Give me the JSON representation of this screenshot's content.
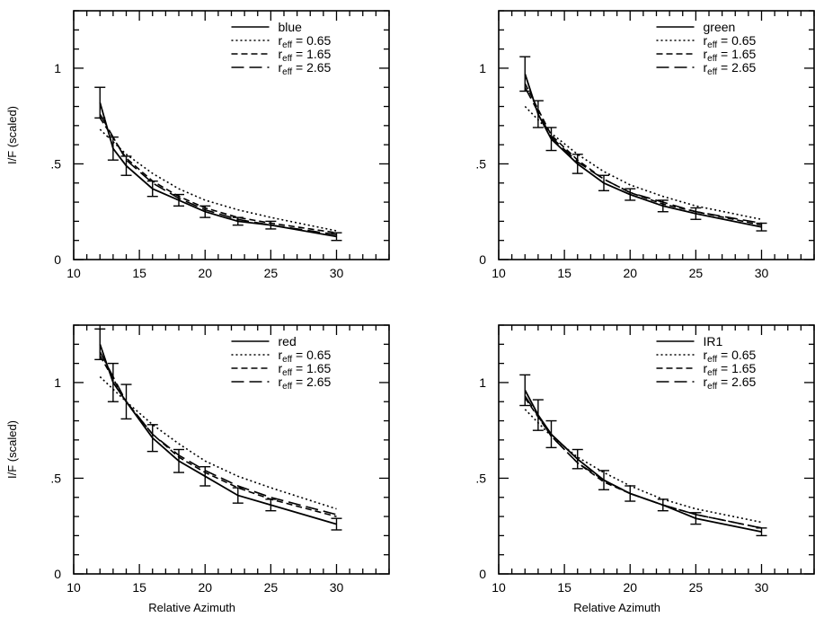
{
  "figure": {
    "ylabel": "I/F (scaled)",
    "xlabel": "Relative Azimuth"
  },
  "chart_data": [
    {
      "type": "line",
      "panel": "top-left",
      "xlim": [
        10,
        34
      ],
      "ylim": [
        0,
        1.3
      ],
      "xticks": [
        "10",
        "15",
        "20",
        "25",
        "30"
      ],
      "yticks": [
        {
          "v": 0,
          "label": "0"
        },
        {
          "v": 0.5,
          "label": ".5"
        },
        {
          "v": 1,
          "label": "1"
        }
      ],
      "ylabel": "I/F (scaled)",
      "xlabel": "",
      "legend_position": "top-right",
      "observed": {
        "name": "blue",
        "x": [
          12,
          13,
          14,
          16,
          18,
          20,
          22.5,
          25,
          30
        ],
        "y": [
          0.82,
          0.58,
          0.49,
          0.37,
          0.31,
          0.25,
          0.2,
          0.18,
          0.12
        ],
        "err": [
          0.08,
          0.06,
          0.05,
          0.04,
          0.03,
          0.03,
          0.02,
          0.02,
          0.02
        ]
      },
      "series": [
        {
          "name_pre": "r",
          "name_sub": "eff",
          "name_post": " = 0.65",
          "dash": "dotted",
          "x": [
            12,
            14,
            16,
            18,
            20,
            22.5,
            25,
            30
          ],
          "y": [
            0.68,
            0.55,
            0.45,
            0.37,
            0.31,
            0.26,
            0.22,
            0.15
          ]
        },
        {
          "name_pre": "r",
          "name_sub": "eff",
          "name_post": " = 1.65",
          "dash": "short-dash",
          "x": [
            12,
            14,
            16,
            18,
            20,
            22.5,
            25,
            30
          ],
          "y": [
            0.74,
            0.53,
            0.41,
            0.33,
            0.27,
            0.22,
            0.19,
            0.14
          ]
        },
        {
          "name_pre": "r",
          "name_sub": "eff",
          "name_post": " = 2.65",
          "dash": "long-dash",
          "x": [
            12,
            14,
            16,
            18,
            20,
            22.5,
            25,
            30
          ],
          "y": [
            0.76,
            0.52,
            0.4,
            0.32,
            0.26,
            0.21,
            0.18,
            0.13
          ]
        }
      ]
    },
    {
      "type": "line",
      "panel": "top-right",
      "xlim": [
        10,
        34
      ],
      "ylim": [
        0,
        1.3
      ],
      "xticks": [
        "10",
        "15",
        "20",
        "25",
        "30"
      ],
      "yticks": [
        {
          "v": 0,
          "label": "0"
        },
        {
          "v": 0.5,
          "label": ".5"
        },
        {
          "v": 1,
          "label": "1"
        }
      ],
      "ylabel": "",
      "xlabel": "",
      "legend_position": "top-right",
      "observed": {
        "name": "green",
        "x": [
          12,
          13,
          14,
          16,
          18,
          20,
          22.5,
          25,
          30
        ],
        "y": [
          0.97,
          0.76,
          0.63,
          0.5,
          0.4,
          0.34,
          0.28,
          0.24,
          0.17
        ],
        "err": [
          0.09,
          0.07,
          0.06,
          0.05,
          0.04,
          0.03,
          0.03,
          0.03,
          0.02
        ]
      },
      "series": [
        {
          "name_pre": "r",
          "name_sub": "eff",
          "name_post": " = 0.65",
          "dash": "dotted",
          "x": [
            12,
            14,
            16,
            18,
            20,
            22.5,
            25,
            30
          ],
          "y": [
            0.8,
            0.66,
            0.55,
            0.46,
            0.39,
            0.33,
            0.28,
            0.21
          ]
        },
        {
          "name_pre": "r",
          "name_sub": "eff",
          "name_post": " = 1.65",
          "dash": "short-dash",
          "x": [
            12,
            14,
            16,
            18,
            20,
            22.5,
            25,
            30
          ],
          "y": [
            0.92,
            0.65,
            0.52,
            0.42,
            0.35,
            0.29,
            0.25,
            0.18
          ]
        },
        {
          "name_pre": "r",
          "name_sub": "eff",
          "name_post": " = 2.65",
          "dash": "long-dash",
          "x": [
            12,
            14,
            16,
            18,
            20,
            22.5,
            25,
            30
          ],
          "y": [
            0.9,
            0.64,
            0.51,
            0.42,
            0.35,
            0.3,
            0.25,
            0.19
          ]
        }
      ]
    },
    {
      "type": "line",
      "panel": "bottom-left",
      "xlim": [
        10,
        34
      ],
      "ylim": [
        0,
        1.3
      ],
      "xticks": [
        "10",
        "15",
        "20",
        "25",
        "30"
      ],
      "yticks": [
        {
          "v": 0,
          "label": "0"
        },
        {
          "v": 0.5,
          "label": ".5"
        },
        {
          "v": 1,
          "label": "1"
        }
      ],
      "ylabel": "I/F (scaled)",
      "xlabel": "Relative Azimuth",
      "legend_position": "top-right",
      "observed": {
        "name": "red",
        "x": [
          12,
          13,
          14,
          16,
          18,
          20,
          22.5,
          25,
          30
        ],
        "y": [
          1.2,
          1.0,
          0.9,
          0.71,
          0.59,
          0.51,
          0.41,
          0.36,
          0.26
        ],
        "err": [
          0.08,
          0.1,
          0.09,
          0.07,
          0.06,
          0.05,
          0.04,
          0.03,
          0.03
        ]
      },
      "series": [
        {
          "name_pre": "r",
          "name_sub": "eff",
          "name_post": " = 0.65",
          "dash": "dotted",
          "x": [
            12,
            14,
            16,
            18,
            20,
            22.5,
            25,
            30
          ],
          "y": [
            1.03,
            0.9,
            0.78,
            0.68,
            0.59,
            0.51,
            0.45,
            0.34
          ]
        },
        {
          "name_pre": "r",
          "name_sub": "eff",
          "name_post": " = 1.65",
          "dash": "short-dash",
          "x": [
            12,
            14,
            16,
            18,
            20,
            22.5,
            25,
            30
          ],
          "y": [
            1.14,
            0.9,
            0.73,
            0.61,
            0.53,
            0.45,
            0.39,
            0.3
          ]
        },
        {
          "name_pre": "r",
          "name_sub": "eff",
          "name_post": " = 2.65",
          "dash": "long-dash",
          "x": [
            12,
            14,
            16,
            18,
            20,
            22.5,
            25,
            30
          ],
          "y": [
            1.16,
            0.9,
            0.73,
            0.62,
            0.54,
            0.46,
            0.4,
            0.31
          ]
        }
      ]
    },
    {
      "type": "line",
      "panel": "bottom-right",
      "xlim": [
        10,
        34
      ],
      "ylim": [
        0,
        1.3
      ],
      "xticks": [
        "10",
        "15",
        "20",
        "25",
        "30"
      ],
      "yticks": [
        {
          "v": 0,
          "label": "0"
        },
        {
          "v": 0.5,
          "label": ".5"
        },
        {
          "v": 1,
          "label": "1"
        }
      ],
      "ylabel": "",
      "xlabel": "Relative Azimuth",
      "legend_position": "top-right",
      "observed": {
        "name": "IR1",
        "x": [
          12,
          13,
          14,
          16,
          18,
          20,
          22.5,
          25,
          30
        ],
        "y": [
          0.96,
          0.83,
          0.73,
          0.6,
          0.49,
          0.42,
          0.36,
          0.29,
          0.22
        ],
        "err": [
          0.08,
          0.08,
          0.07,
          0.05,
          0.05,
          0.04,
          0.03,
          0.03,
          0.02
        ]
      },
      "series": [
        {
          "name_pre": "r",
          "name_sub": "eff",
          "name_post": " = 0.65",
          "dash": "dotted",
          "x": [
            12,
            14,
            16,
            18,
            20,
            22.5,
            25,
            30
          ],
          "y": [
            0.86,
            0.72,
            0.61,
            0.53,
            0.46,
            0.39,
            0.34,
            0.27
          ]
        },
        {
          "name_pre": "r",
          "name_sub": "eff",
          "name_post": " = 1.65",
          "dash": "short-dash",
          "x": [
            12,
            14,
            16,
            18,
            20,
            22.5,
            25,
            30
          ],
          "y": [
            0.92,
            0.72,
            0.58,
            0.48,
            0.42,
            0.36,
            0.31,
            0.24
          ]
        },
        {
          "name_pre": "r",
          "name_sub": "eff",
          "name_post": " = 2.65",
          "dash": "long-dash",
          "x": [
            12,
            14,
            16,
            18,
            20,
            22.5,
            25,
            30
          ],
          "y": [
            0.93,
            0.72,
            0.58,
            0.49,
            0.42,
            0.36,
            0.31,
            0.24
          ]
        }
      ]
    }
  ]
}
